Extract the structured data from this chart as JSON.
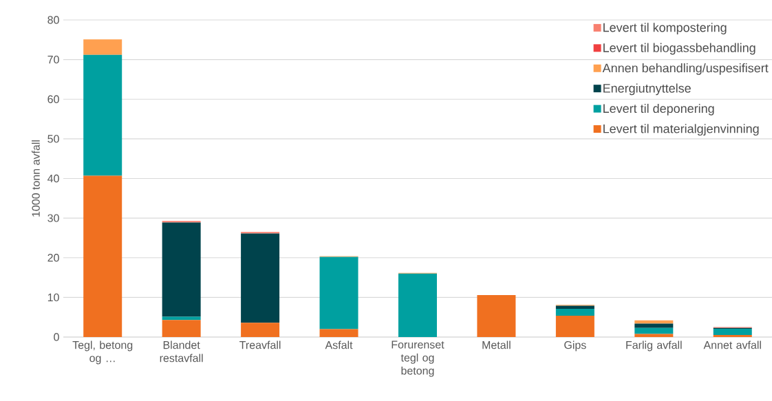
{
  "chart_data": {
    "type": "bar",
    "stacked": true,
    "ylabel": "1000 tonn avfall",
    "categories": [
      "Tegl, betong og …",
      "Blandet restavfall",
      "Treavfall",
      "Asfalt",
      "Forurenset tegl og betong",
      "Metall",
      "Gips",
      "Farlig avfall",
      "Annet avfall"
    ],
    "series": [
      {
        "name": "Levert til materialgjenvinning",
        "color": "#f07020",
        "values": [
          40.7,
          4.3,
          3.6,
          2.0,
          0,
          10.6,
          5.4,
          0.8,
          0.5
        ]
      },
      {
        "name": "Levert til deponering",
        "color": "#00a0a0",
        "values": [
          30.5,
          0.8,
          0,
          18.2,
          16.0,
          0,
          1.7,
          1.5,
          1.6
        ]
      },
      {
        "name": "Energiutnyttelse",
        "color": "#00434c",
        "values": [
          0,
          23.8,
          22.5,
          0,
          0,
          0,
          0.8,
          1.1,
          0.2
        ]
      },
      {
        "name": "Annen behandling/uspesifisert",
        "color": "#ffa050",
        "values": [
          3.9,
          0,
          0,
          0.2,
          0.2,
          0,
          0.2,
          0.8,
          0
        ]
      },
      {
        "name": "Levert til biogassbehandling",
        "color": "#f04040",
        "values": [
          0,
          0,
          0,
          0,
          0,
          0,
          0,
          0,
          0
        ]
      },
      {
        "name": "Levert til kompostering",
        "color": "#f88070",
        "values": [
          0,
          0.4,
          0.4,
          0,
          0,
          0,
          0,
          0,
          0.2
        ]
      }
    ],
    "ylim": [
      0,
      80
    ],
    "yticks": [
      0,
      10,
      20,
      30,
      40,
      50,
      60,
      70,
      80
    ],
    "grid": "y",
    "legend": "top right"
  }
}
